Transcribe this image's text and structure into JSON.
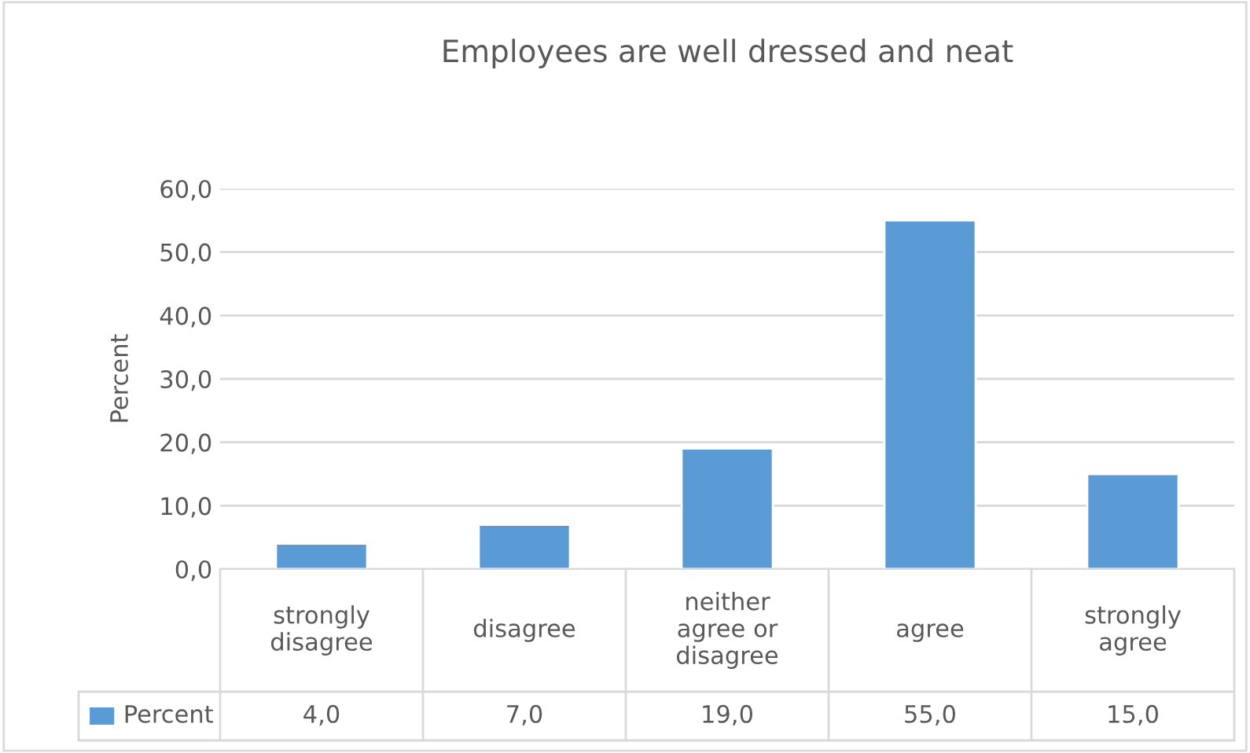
{
  "chart_data": {
    "type": "bar",
    "title": "Employees are well dressed and neat",
    "ylabel": "Percent",
    "categories": [
      "strongly disagree",
      "disagree",
      "neither agree or disagree",
      "agree",
      "strongly agree"
    ],
    "series": [
      {
        "name": "Percent",
        "color": "#5b9bd5",
        "values": [
          4,
          7,
          19,
          55,
          15
        ],
        "value_labels": [
          "4,0",
          "7,0",
          "19,0",
          "55,0",
          "15,0"
        ]
      }
    ],
    "ylim": [
      0,
      60
    ],
    "yticks": [
      {
        "value": 0,
        "label": "0,0"
      },
      {
        "value": 10,
        "label": "10,0"
      },
      {
        "value": 20,
        "label": "20,0"
      },
      {
        "value": 30,
        "label": "30,0"
      },
      {
        "value": 40,
        "label": "40,0"
      },
      {
        "value": 50,
        "label": "50,0"
      },
      {
        "value": 60,
        "label": "60,0"
      }
    ],
    "grid": "y"
  }
}
